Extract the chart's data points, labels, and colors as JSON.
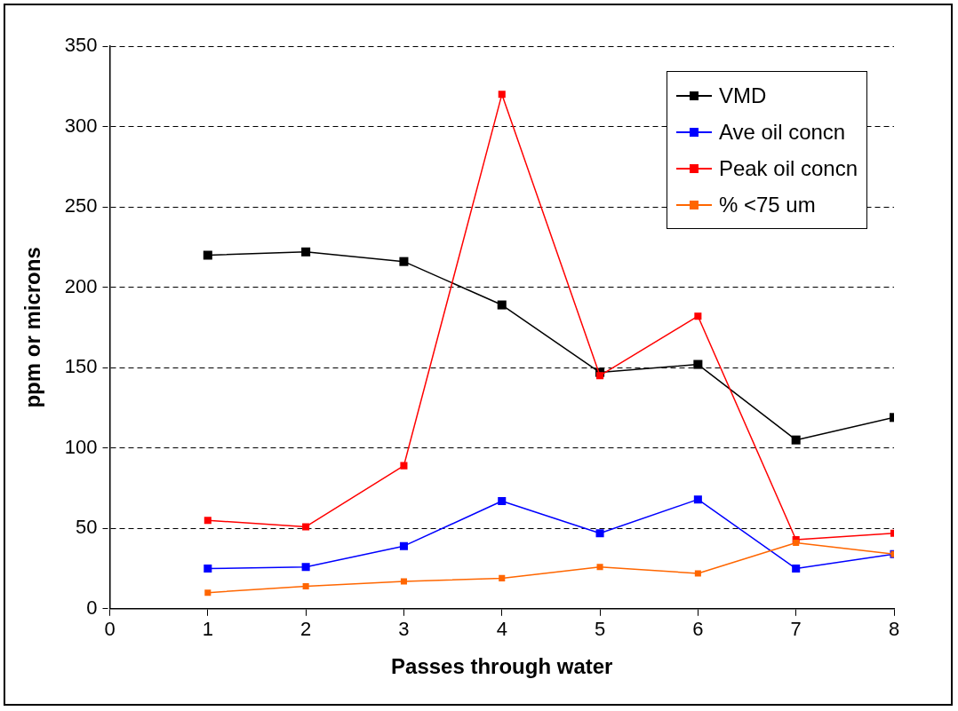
{
  "chart_data": {
    "type": "line",
    "xlabel": "Passes through water",
    "ylabel": "ppm or microns",
    "x": [
      1,
      2,
      3,
      4,
      5,
      6,
      7,
      8
    ],
    "series": [
      {
        "name": "VMD",
        "color": "#000000",
        "values": [
          220,
          222,
          216,
          189,
          147,
          152,
          105,
          119
        ]
      },
      {
        "name": "Ave oil concn",
        "color": "#0000ff",
        "values": [
          25,
          26,
          39,
          67,
          47,
          68,
          25,
          34
        ]
      },
      {
        "name": "Peak oil concn",
        "color": "#ff0000",
        "values": [
          55,
          51,
          89,
          320,
          145,
          182,
          43,
          47
        ]
      },
      {
        "name": "% <75 um",
        "color": "#ff6600",
        "values": [
          10,
          14,
          17,
          19,
          26,
          22,
          41,
          34
        ]
      }
    ],
    "xlim": [
      0,
      8
    ],
    "xticks": [
      0,
      1,
      2,
      3,
      4,
      5,
      6,
      7,
      8
    ],
    "ylim": [
      0,
      350
    ],
    "yticks": [
      0,
      50,
      100,
      150,
      200,
      250,
      300,
      350
    ],
    "grid": "y",
    "legend": "top right",
    "marker": "square",
    "line_style": "solid"
  }
}
